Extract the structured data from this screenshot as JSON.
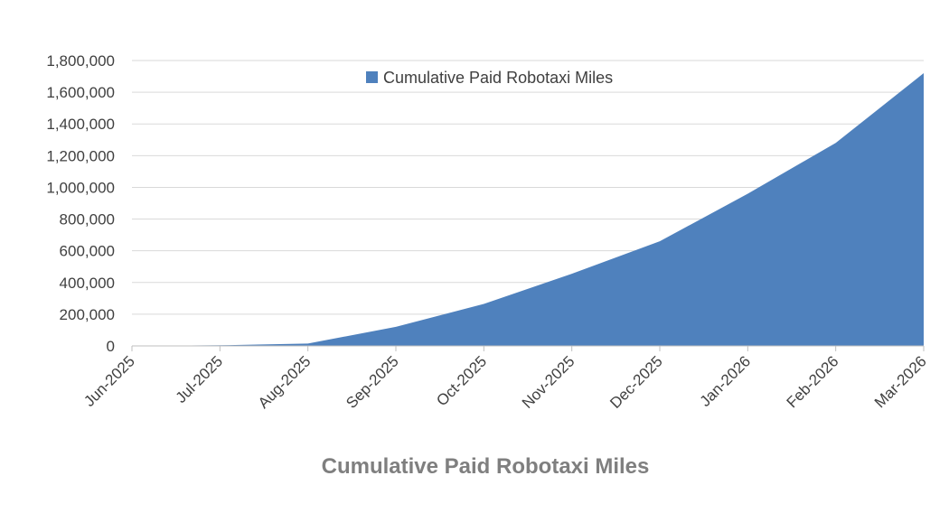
{
  "chart_data": {
    "type": "area",
    "title": "Cumulative Paid Robotaxi Miles",
    "xlabel": "",
    "ylabel": "",
    "categories": [
      "Jun-2025",
      "Jul-2025",
      "Aug-2025",
      "Sep-2025",
      "Oct-2025",
      "Nov-2025",
      "Dec-2025",
      "Jan-2026",
      "Feb-2026",
      "Mar-2026"
    ],
    "series": [
      {
        "name": "Cumulative Paid Robotaxi Miles",
        "values": [
          0,
          4000,
          15000,
          120000,
          265000,
          455000,
          660000,
          960000,
          1280000,
          1720000
        ]
      }
    ],
    "ylim": [
      0,
      1800000
    ],
    "yticks": [
      0,
      200000,
      400000,
      600000,
      800000,
      1000000,
      1200000,
      1400000,
      1600000,
      1800000
    ],
    "ytick_labels": [
      "0",
      "200,000",
      "400,000",
      "600,000",
      "800,000",
      "1,000,000",
      "1,200,000",
      "1,400,000",
      "1,600,000",
      "1,800,000"
    ],
    "grid": "horizontal",
    "legend_position": "top-center",
    "colors": {
      "series": "#4f81bd",
      "title": "#7f7f7f",
      "text": "#404040",
      "grid": "#d9d9d9"
    }
  }
}
